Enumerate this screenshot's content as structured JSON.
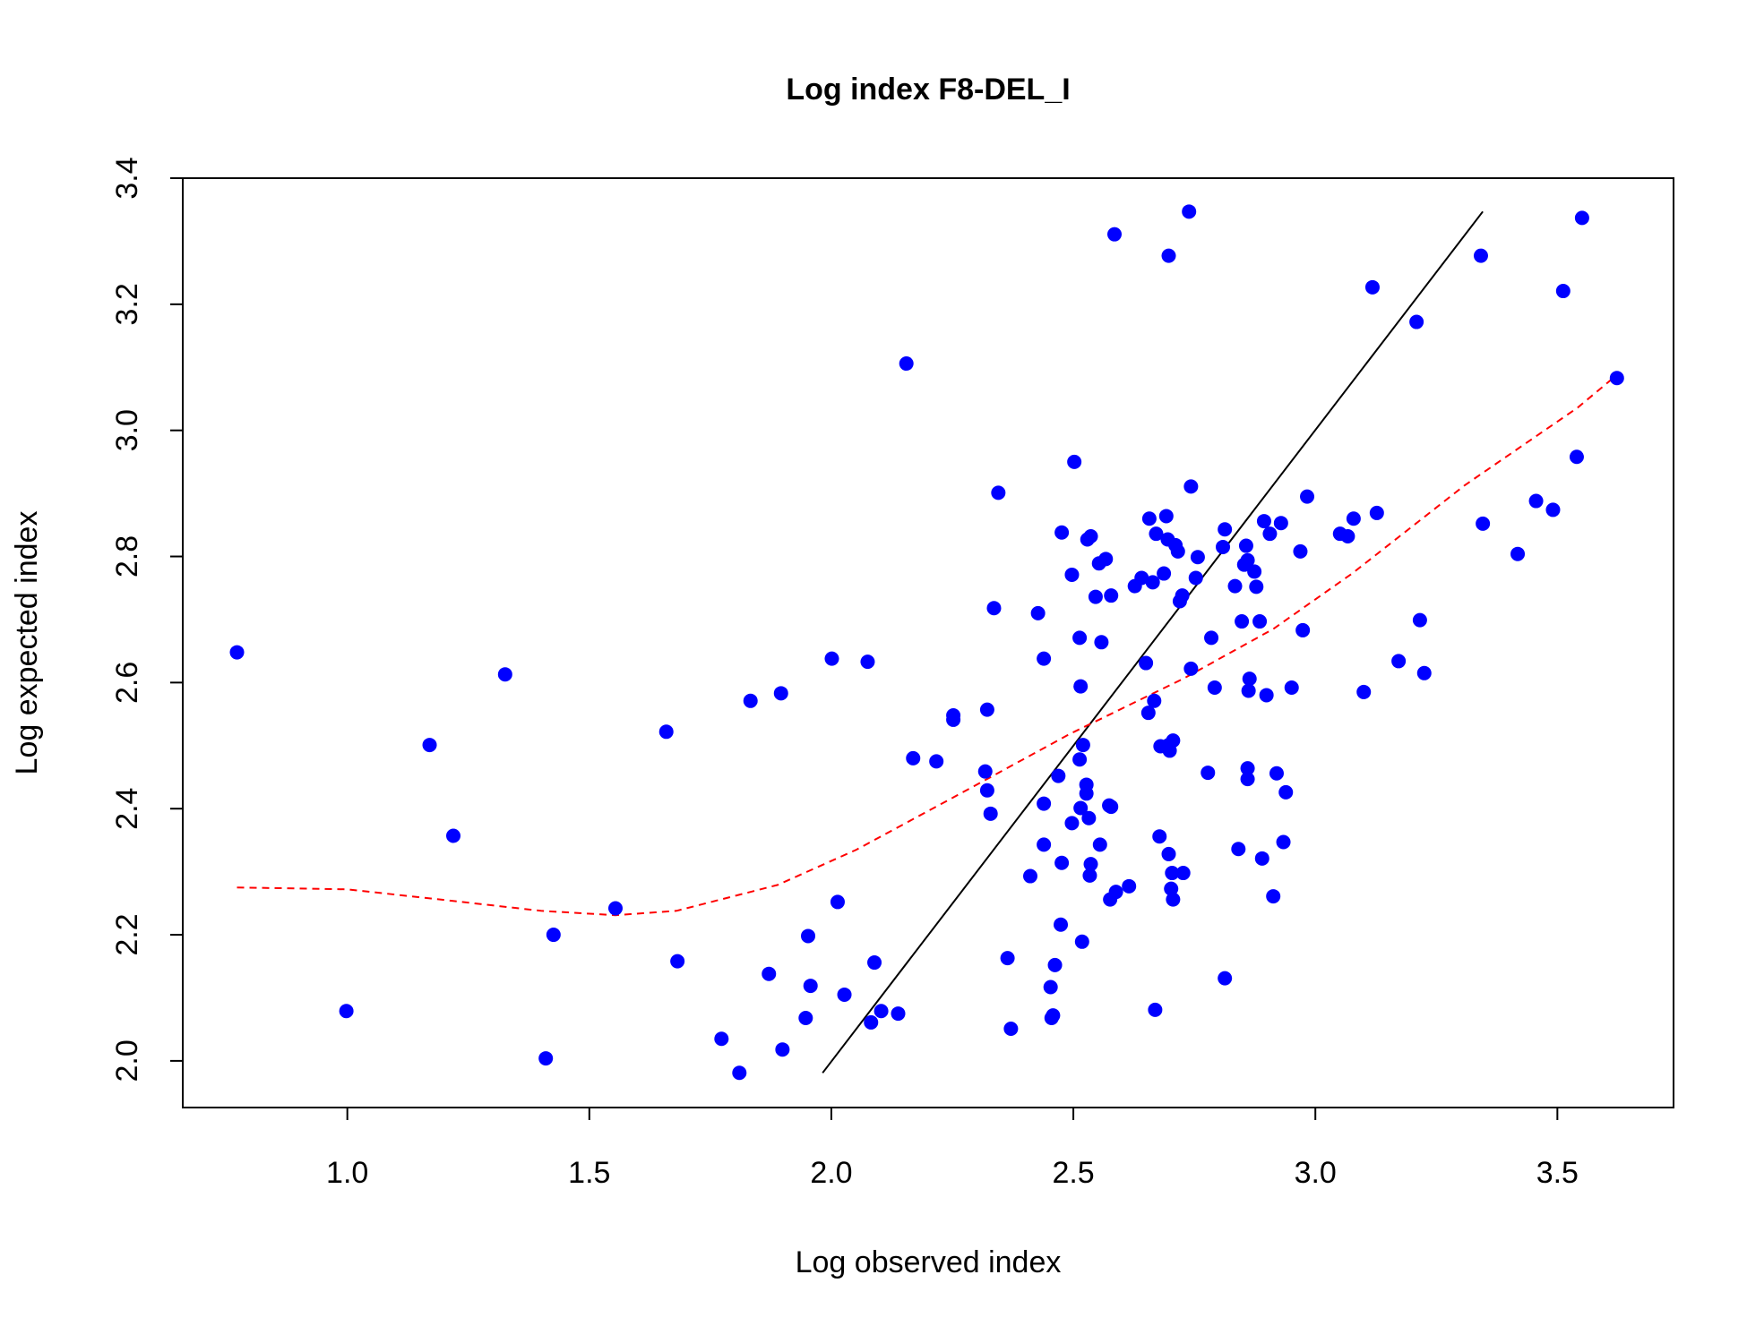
{
  "chart_data": {
    "type": "scatter",
    "title": "Log index F8-DEL_I",
    "x_label": "Log observed index",
    "y_label": "Log expected index",
    "xlim": [
      0.66,
      3.74
    ],
    "ylim": [
      1.926,
      3.4
    ],
    "xticks": [
      {
        "value": 1,
        "label": "1.0"
      },
      1.5,
      {
        "value": 2,
        "label": "2.0"
      },
      2.5,
      {
        "value": 3,
        "label": "3.0"
      },
      3.5
    ],
    "yticks": [
      {
        "value": 2,
        "label": "2.0"
      },
      2.2,
      2.4,
      2.6,
      2.8,
      {
        "value": 3,
        "label": "3.0"
      },
      3.2,
      3.4
    ],
    "series": [
      {
        "color": "#0000ff",
        "x": [
          0.772,
          0.998,
          1.17,
          1.219,
          1.326,
          1.41,
          1.426,
          1.554,
          1.659,
          1.682,
          1.773,
          1.81,
          1.833,
          1.871,
          1.896,
          1.899,
          1.947,
          1.952,
          1.957,
          2.001,
          2.013,
          2.027,
          2.075,
          2.082,
          2.089,
          2.103,
          2.138,
          2.155,
          2.169,
          2.217,
          2.252,
          2.252,
          2.318,
          2.322,
          2.322,
          2.329,
          2.336,
          2.345,
          2.364,
          2.371,
          2.411,
          2.427,
          2.439,
          2.439,
          2.439,
          2.453,
          2.455,
          2.458,
          2.462,
          2.469,
          2.474,
          2.476,
          2.476,
          2.497,
          2.497,
          2.502,
          2.513,
          2.515,
          2.513,
          2.518,
          2.52,
          2.515,
          2.527,
          2.527,
          2.529,
          2.536,
          2.532,
          2.534,
          2.536,
          2.546,
          2.553,
          2.555,
          2.558,
          2.567,
          2.574,
          2.576,
          2.578,
          2.578,
          2.585,
          2.588,
          2.615,
          2.627,
          2.641,
          2.65,
          2.655,
          2.657,
          2.664,
          2.667,
          2.669,
          2.671,
          2.678,
          2.68,
          2.687,
          2.692,
          2.695,
          2.697,
          2.697,
          2.697,
          2.699,
          2.702,
          2.704,
          2.706,
          2.706,
          2.711,
          2.716,
          2.72,
          2.725,
          2.727,
          2.739,
          2.743,
          2.743,
          2.753,
          2.757,
          2.778,
          2.785,
          2.792,
          2.809,
          2.813,
          2.813,
          2.834,
          2.841,
          2.848,
          2.853,
          2.857,
          2.86,
          2.86,
          2.86,
          2.862,
          2.864,
          2.874,
          2.878,
          2.885,
          2.89,
          2.894,
          2.899,
          2.906,
          2.913,
          2.92,
          2.929,
          2.934,
          2.939,
          2.951,
          2.969,
          2.974,
          2.983,
          3.051,
          3.067,
          3.079,
          3.1,
          3.118,
          3.127,
          3.172,
          3.209,
          3.216,
          3.225,
          3.342,
          3.346,
          3.418,
          3.456,
          3.491,
          3.512,
          3.54,
          3.551,
          3.623
        ],
        "y": [
          2.648,
          2.079,
          2.501,
          2.357,
          2.613,
          2.004,
          2.2,
          2.242,
          2.522,
          2.158,
          2.035,
          1.981,
          2.571,
          2.138,
          2.583,
          2.018,
          2.068,
          2.198,
          2.119,
          2.638,
          2.252,
          2.105,
          2.633,
          2.061,
          2.156,
          2.079,
          2.075,
          3.106,
          2.48,
          2.475,
          2.548,
          2.541,
          2.459,
          2.557,
          2.429,
          2.392,
          2.718,
          2.901,
          2.163,
          2.051,
          2.293,
          2.71,
          2.638,
          2.343,
          2.408,
          2.117,
          2.068,
          2.072,
          2.152,
          2.452,
          2.216,
          2.838,
          2.314,
          2.377,
          2.771,
          2.95,
          2.671,
          2.594,
          2.478,
          2.189,
          2.501,
          2.401,
          2.438,
          2.424,
          2.827,
          2.832,
          2.385,
          2.294,
          2.312,
          2.736,
          2.789,
          2.343,
          2.664,
          2.796,
          2.405,
          2.256,
          2.403,
          2.738,
          3.311,
          2.268,
          2.277,
          2.753,
          2.766,
          2.631,
          2.552,
          2.86,
          2.759,
          2.571,
          2.081,
          2.836,
          2.356,
          2.499,
          2.773,
          2.864,
          2.827,
          3.277,
          2.501,
          2.328,
          2.492,
          2.273,
          2.298,
          2.508,
          2.256,
          2.818,
          2.808,
          2.729,
          2.738,
          2.298,
          3.347,
          2.911,
          2.622,
          2.766,
          2.799,
          2.457,
          2.671,
          2.592,
          2.815,
          2.843,
          2.131,
          2.753,
          2.336,
          2.697,
          2.787,
          2.817,
          2.464,
          2.447,
          2.794,
          2.587,
          2.606,
          2.776,
          2.752,
          2.697,
          2.321,
          2.856,
          2.58,
          2.836,
          2.261,
          2.456,
          2.853,
          2.347,
          2.426,
          2.592,
          2.808,
          2.683,
          2.895,
          2.836,
          2.832,
          2.86,
          2.585,
          3.227,
          2.869,
          2.634,
          3.172,
          2.699,
          2.615,
          3.277,
          2.852,
          2.804,
          2.888,
          2.874,
          3.221,
          2.958,
          3.337,
          3.083
        ]
      }
    ],
    "lines": [
      {
        "color": "#000000",
        "x": [
          1.982,
          3.346
        ],
        "y": [
          1.981,
          3.347
        ]
      },
      {
        "color": "#ff0000",
        "dashed": true,
        "x": [
          0.772,
          1.0,
          1.214,
          1.4,
          1.554,
          1.68,
          1.889,
          2.052,
          2.262,
          2.494,
          2.727,
          2.913,
          3.076,
          3.309,
          3.542,
          3.623
        ],
        "y": [
          2.275,
          2.272,
          2.254,
          2.238,
          2.231,
          2.238,
          2.279,
          2.335,
          2.422,
          2.519,
          2.606,
          2.685,
          2.773,
          2.913,
          3.036,
          3.088
        ]
      }
    ]
  }
}
